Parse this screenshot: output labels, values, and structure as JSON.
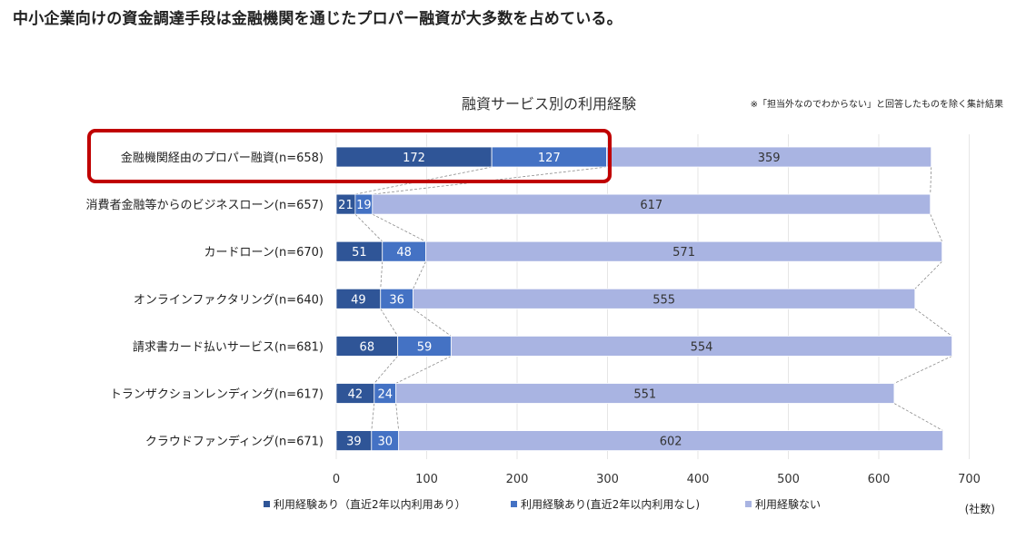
{
  "headline": "中小企業向けの資金調達手段は金融機関を通じたプロパー融資が大多数を占めている。",
  "chart_data": {
    "type": "bar",
    "orientation": "horizontal",
    "stacked": true,
    "title": "融資サービス別の利用経験",
    "note": "※「担当外なのでわからない」と回答したものを除く集計結果",
    "unit": "(社数)",
    "categories": [
      "金融機関経由のプロパー融資(n=658)",
      "消費者金融等からのビジネスローン(n=657)",
      "カードローン(n=670)",
      "オンラインファクタリング(n=640)",
      "請求書カード払いサービス(n=681)",
      "トランザクションレンディング(n=617)",
      "クラウドファンディング(n=671)"
    ],
    "series": [
      {
        "name": "利用経験あり（直近2年以内利用あり）",
        "color": "#2f5597",
        "values": [
          172,
          21,
          51,
          49,
          68,
          42,
          39
        ]
      },
      {
        "name": "利用経験あり(直近2年以内利用なし)",
        "color": "#4472c4",
        "values": [
          127,
          19,
          48,
          36,
          59,
          24,
          30
        ]
      },
      {
        "name": "利用経験ない",
        "color": "#a9b4e2",
        "values": [
          359,
          617,
          571,
          555,
          554,
          551,
          602
        ]
      }
    ],
    "xlim": [
      0,
      700
    ],
    "xticks": [
      "0",
      "100",
      "200",
      "300",
      "400",
      "500",
      "600",
      "700"
    ],
    "grid": true,
    "series_lines": true,
    "legend_position": "bottom",
    "highlight_category": 0,
    "highlight_color": "#c00000"
  }
}
